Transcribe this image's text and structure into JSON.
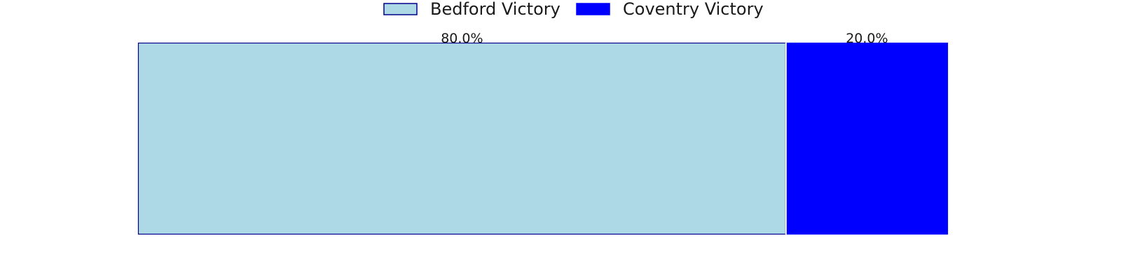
{
  "chart_data": {
    "type": "bar",
    "orientation": "horizontal-stacked",
    "categories": [
      ""
    ],
    "series": [
      {
        "name": "Bedford Victory",
        "values": [
          80.0
        ],
        "label": "80.0%",
        "color": "#add8e6",
        "edgecolor": "#00008b"
      },
      {
        "name": "Coventry Victory",
        "values": [
          20.0
        ],
        "label": "20.0%",
        "color": "#0000ff",
        "edgecolor": "#0000ff"
      }
    ],
    "xlim": [
      0,
      100
    ],
    "title": "",
    "xlabel": "",
    "ylabel": "",
    "grid": false,
    "axes_visible": false,
    "legend_position": "top-center"
  }
}
